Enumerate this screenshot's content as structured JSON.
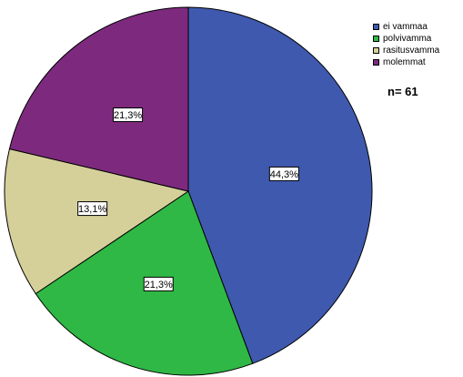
{
  "chart_data": {
    "type": "pie",
    "categories": [
      "ei vammaa",
      "polvivamma",
      "rasitusvamma",
      "molemmat"
    ],
    "values": [
      44.3,
      21.3,
      13.1,
      21.3
    ],
    "data_labels": [
      "44,3%",
      "21,3%",
      "13,1%",
      "21,3%"
    ],
    "colors": [
      "#3F59AE",
      "#2FB845",
      "#D5D09A",
      "#7D2A7E"
    ],
    "start_angle_deg": 0,
    "direction": "clockwise",
    "annotation": "n= 61",
    "legend_placement": "top-right"
  }
}
